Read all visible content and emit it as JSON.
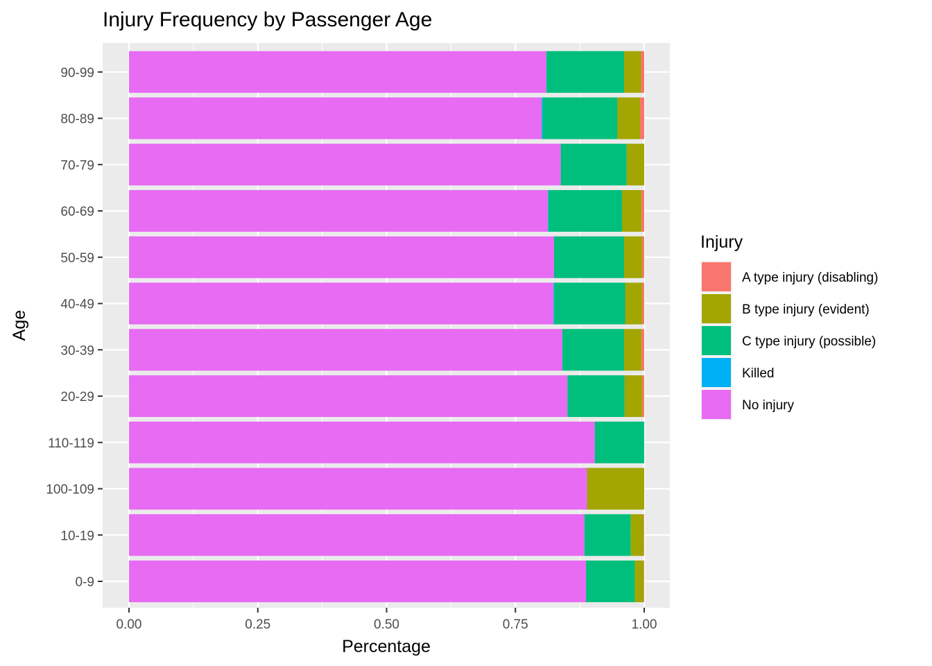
{
  "chart_data": {
    "type": "bar",
    "orientation": "horizontal",
    "stacked": true,
    "title": "Injury Frequency by Passenger Age",
    "xlabel": "Percentage",
    "ylabel": "Age",
    "xlim": [
      0,
      1
    ],
    "xticks": [
      "0.00",
      "0.25",
      "0.50",
      "0.75",
      "1.00"
    ],
    "grid": true,
    "legend_position": "right",
    "legend_title": "Injury",
    "categories": [
      "0-9",
      "10-19",
      "100-109",
      "110-119",
      "20-29",
      "30-39",
      "40-49",
      "50-59",
      "60-69",
      "70-79",
      "80-89",
      "90-99"
    ],
    "series": [
      {
        "name": "No injury",
        "color": "#E76BF3",
        "values": [
          0.887,
          0.884,
          0.889,
          0.904,
          0.851,
          0.841,
          0.824,
          0.825,
          0.813,
          0.838,
          0.801,
          0.81
        ]
      },
      {
        "name": "Killed",
        "color": "#00B0F6",
        "values": [
          0.0,
          0.0,
          0.0,
          0.0,
          0.0,
          0.0,
          0.001,
          0.0,
          0.001,
          0.0,
          0.002,
          0.0
        ]
      },
      {
        "name": "C type injury (possible)",
        "color": "#00BF7D",
        "values": [
          0.095,
          0.09,
          0.0,
          0.096,
          0.111,
          0.12,
          0.138,
          0.136,
          0.143,
          0.128,
          0.145,
          0.151
        ]
      },
      {
        "name": "B type injury (evident)",
        "color": "#A3A500",
        "values": [
          0.017,
          0.025,
          0.111,
          0.0,
          0.034,
          0.034,
          0.033,
          0.035,
          0.038,
          0.034,
          0.044,
          0.033
        ]
      },
      {
        "name": "A type injury (disabling)",
        "color": "#F8766D",
        "values": [
          0.001,
          0.001,
          0.0,
          0.0,
          0.004,
          0.005,
          0.004,
          0.004,
          0.005,
          0.0,
          0.008,
          0.006
        ]
      }
    ],
    "legend_order": [
      "A type injury (disabling)",
      "B type injury (evident)",
      "C type injury (possible)",
      "Killed",
      "No injury"
    ]
  }
}
